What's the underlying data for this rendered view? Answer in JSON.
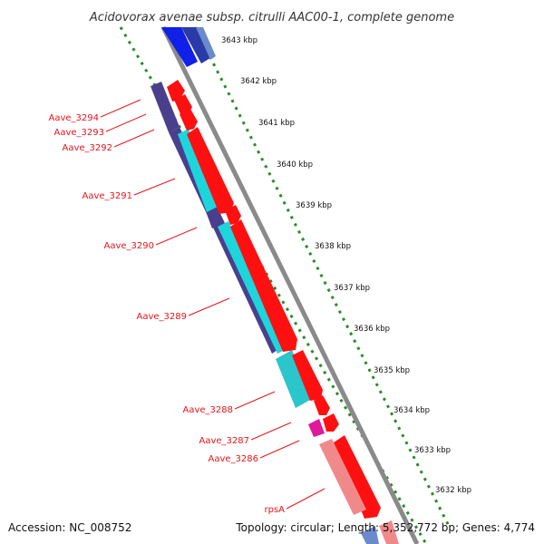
{
  "title": "Acidovorax avenae subsp. citrulli AAC00-1, complete genome",
  "footer": {
    "accession": "Accession: NC_008752",
    "topology": "Topology: circular; Length: 5,352,772 bp; Genes: 4,774"
  },
  "scale_labels": [
    "3643 kbp",
    "3642 kbp",
    "3641 kbp",
    "3640 kbp",
    "3639 kbp",
    "3638 kbp",
    "3637 kbp",
    "3636 kbp",
    "3635 kbp",
    "3634 kbp",
    "3633 kbp",
    "3632 kbp"
  ],
  "gene_labels": [
    "Aave_3294",
    "Aave_3293",
    "Aave_3292",
    "Aave_3291",
    "Aave_3290",
    "Aave_3289",
    "Aave_3288",
    "Aave_3287",
    "Aave_3286",
    "rpsA"
  ],
  "colors": {
    "backbone": "#8a8a8a",
    "scale_dots": "#2a8a2a",
    "gene_red": "#ff1010",
    "dark_purple": "#4a3f8c",
    "cyan": "#1dd6dc",
    "pink": "#f08a8a",
    "magenta": "#e0189a",
    "blue": "#1020e8",
    "label_red": "#e8141b"
  }
}
